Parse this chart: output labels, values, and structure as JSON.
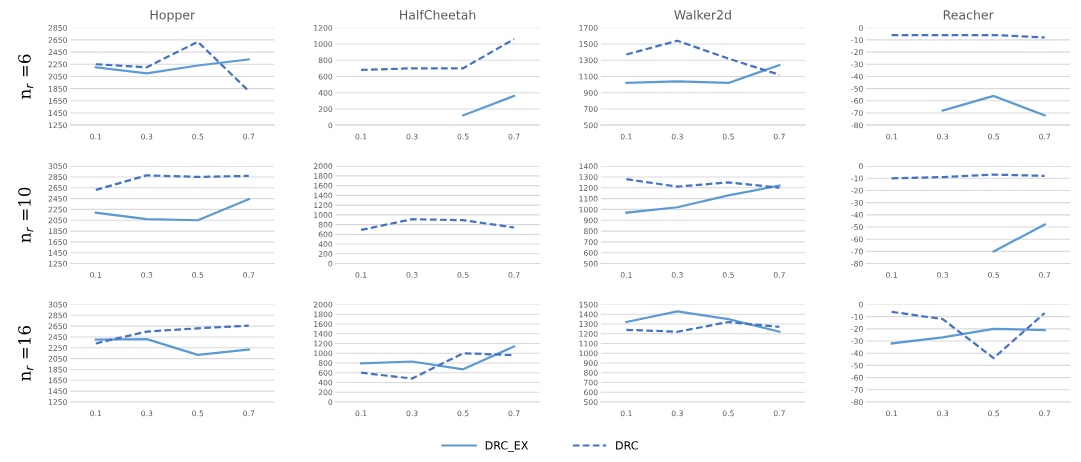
{
  "chart_data": [
    {
      "type": "line",
      "title": "Hopper",
      "ylabel": "n$_{r}$ =6",
      "categories": [
        "0.1",
        "0.3",
        "0.5",
        "0.7"
      ],
      "ylim": [
        1250,
        2850
      ],
      "yticks": [
        1250,
        1450,
        1650,
        1850,
        2050,
        2250,
        2450,
        2650,
        2850
      ],
      "grid": "y",
      "legend": "bottom",
      "series": [
        {
          "name": "DRC_EX",
          "color": "#5b9bd5",
          "line_style": "solid",
          "values": [
            2200,
            2100,
            2230,
            2330
          ]
        },
        {
          "name": "DRC",
          "color": "#4472c4",
          "line_style": "dashed",
          "values": [
            2250,
            2200,
            2620,
            1810
          ]
        }
      ]
    },
    {
      "type": "line",
      "title": "HalfCheetah",
      "categories": [
        "0.1",
        "0.3",
        "0.5",
        "0.7"
      ],
      "ylim": [
        0,
        1200
      ],
      "yticks": [
        0,
        200,
        400,
        600,
        800,
        1000,
        1200
      ],
      "grid": "y",
      "legend": false,
      "series": [
        {
          "name": "DRC_EX",
          "color": "#5b9bd5",
          "line_style": "solid",
          "values": [
            null,
            null,
            120,
            360
          ]
        },
        {
          "name": "DRC",
          "color": "#4472c4",
          "line_style": "dashed",
          "values": [
            680,
            700,
            700,
            1060
          ]
        }
      ]
    },
    {
      "type": "line",
      "title": "Walker2d",
      "categories": [
        "0.1",
        "0.3",
        "0.5",
        "0.7"
      ],
      "ylim": [
        500,
        1700
      ],
      "yticks": [
        500,
        700,
        900,
        1100,
        1300,
        1500,
        1700
      ],
      "grid": "y",
      "legend": false,
      "series": [
        {
          "name": "DRC_EX",
          "color": "#5b9bd5",
          "line_style": "solid",
          "values": [
            1020,
            1040,
            1020,
            1240
          ]
        },
        {
          "name": "DRC",
          "color": "#4472c4",
          "line_style": "dashed",
          "values": [
            1370,
            1540,
            1320,
            1120
          ]
        }
      ]
    },
    {
      "type": "line",
      "title": "Reacher",
      "categories": [
        "0.1",
        "0.3",
        "0.5",
        "0.7"
      ],
      "ylim": [
        -80,
        0
      ],
      "yticks": [
        -80,
        -70,
        -60,
        -50,
        -40,
        -30,
        -20,
        -10,
        0
      ],
      "grid": "y",
      "legend": false,
      "series": [
        {
          "name": "DRC_EX",
          "color": "#5b9bd5",
          "line_style": "solid",
          "values": [
            null,
            -68,
            -56,
            -72
          ]
        },
        {
          "name": "DRC",
          "color": "#4472c4",
          "line_style": "dashed",
          "values": [
            -6,
            -6,
            -6,
            -8
          ]
        }
      ]
    },
    {
      "type": "line",
      "ylabel": "n$_{r}$ =10",
      "categories": [
        "0.1",
        "0.3",
        "0.5",
        "0.7"
      ],
      "ylim": [
        1250,
        3050
      ],
      "yticks": [
        1250,
        1450,
        1650,
        1850,
        2050,
        2250,
        2450,
        2650,
        2850,
        3050
      ],
      "grid": "y",
      "legend": false,
      "series": [
        {
          "name": "DRC_EX",
          "color": "#5b9bd5",
          "line_style": "solid",
          "values": [
            2190,
            2070,
            2050,
            2440
          ]
        },
        {
          "name": "DRC",
          "color": "#4472c4",
          "line_style": "dashed",
          "values": [
            2610,
            2880,
            2850,
            2870
          ]
        }
      ]
    },
    {
      "type": "line",
      "categories": [
        "0.1",
        "0.3",
        "0.5",
        "0.7"
      ],
      "ylim": [
        0,
        2000
      ],
      "yticks": [
        0,
        200,
        400,
        600,
        800,
        1000,
        1200,
        1400,
        1600,
        1800,
        2000
      ],
      "grid": "y",
      "legend": false,
      "series": [
        {
          "name": "DRC",
          "color": "#4472c4",
          "line_style": "dashed",
          "values": [
            690,
            910,
            890,
            740
          ]
        }
      ]
    },
    {
      "type": "line",
      "categories": [
        "0.1",
        "0.3",
        "0.5",
        "0.7"
      ],
      "ylim": [
        500,
        1400
      ],
      "yticks": [
        500,
        600,
        700,
        800,
        900,
        1000,
        1100,
        1200,
        1300,
        1400
      ],
      "grid": "y",
      "legend": false,
      "series": [
        {
          "name": "DRC_EX",
          "color": "#5b9bd5",
          "line_style": "solid",
          "values": [
            970,
            1020,
            1130,
            1220
          ]
        },
        {
          "name": "DRC",
          "color": "#4472c4",
          "line_style": "dashed",
          "values": [
            1280,
            1210,
            1250,
            1200
          ]
        }
      ]
    },
    {
      "type": "line",
      "categories": [
        "0.1",
        "0.3",
        "0.5",
        "0.7"
      ],
      "ylim": [
        -80,
        0
      ],
      "yticks": [
        -80,
        -70,
        -60,
        -50,
        -40,
        -30,
        -20,
        -10,
        0
      ],
      "grid": "y",
      "legend": false,
      "series": [
        {
          "name": "DRC_EX",
          "color": "#5b9bd5",
          "line_style": "solid",
          "values": [
            null,
            null,
            -70,
            -48
          ]
        },
        {
          "name": "DRC",
          "color": "#4472c4",
          "line_style": "dashed",
          "values": [
            -10,
            -9,
            -7,
            -8
          ]
        }
      ]
    },
    {
      "type": "line",
      "ylabel": "n$_{r}$ =16",
      "categories": [
        "0.1",
        "0.3",
        "0.5",
        "0.7"
      ],
      "ylim": [
        1250,
        3050
      ],
      "yticks": [
        1250,
        1450,
        1650,
        1850,
        2050,
        2250,
        2450,
        2650,
        2850,
        3050
      ],
      "grid": "y",
      "legend": false,
      "series": [
        {
          "name": "DRC_EX",
          "color": "#5b9bd5",
          "line_style": "solid",
          "values": [
            2400,
            2410,
            2120,
            2220
          ]
        },
        {
          "name": "DRC",
          "color": "#4472c4",
          "line_style": "dashed",
          "values": [
            2330,
            2550,
            2610,
            2660
          ]
        }
      ]
    },
    {
      "type": "line",
      "categories": [
        "0.1",
        "0.3",
        "0.5",
        "0.7"
      ],
      "ylim": [
        0,
        2000
      ],
      "yticks": [
        0,
        200,
        400,
        600,
        800,
        1000,
        1200,
        1400,
        1600,
        1800,
        2000
      ],
      "grid": "y",
      "legend": false,
      "series": [
        {
          "name": "DRC_EX",
          "color": "#5b9bd5",
          "line_style": "solid",
          "values": [
            790,
            830,
            670,
            1140
          ]
        },
        {
          "name": "DRC",
          "color": "#4472c4",
          "line_style": "dashed",
          "values": [
            600,
            480,
            1000,
            960
          ]
        }
      ]
    },
    {
      "type": "line",
      "categories": [
        "0.1",
        "0.3",
        "0.5",
        "0.7"
      ],
      "ylim": [
        500,
        1500
      ],
      "yticks": [
        500,
        600,
        700,
        800,
        900,
        1000,
        1100,
        1200,
        1300,
        1400,
        1500
      ],
      "grid": "y",
      "legend": "bottom",
      "series": [
        {
          "name": "DRC_EX",
          "color": "#5b9bd5",
          "line_style": "solid",
          "values": [
            1320,
            1430,
            1350,
            1220
          ]
        },
        {
          "name": "DRC",
          "color": "#4472c4",
          "line_style": "dashed",
          "values": [
            1240,
            1220,
            1320,
            1270
          ]
        }
      ]
    },
    {
      "type": "line",
      "categories": [
        "0.1",
        "0.3",
        "0.5",
        "0.7"
      ],
      "ylim": [
        -80,
        0
      ],
      "yticks": [
        -80,
        -70,
        -60,
        -50,
        -40,
        -30,
        -20,
        -10,
        0
      ],
      "grid": "y",
      "legend": false,
      "series": [
        {
          "name": "DRC_EX",
          "color": "#5b9bd5",
          "line_style": "solid",
          "values": [
            -32,
            -27,
            -20,
            -21
          ]
        },
        {
          "name": "DRC",
          "color": "#4472c4",
          "line_style": "dashed",
          "values": [
            -6,
            -12,
            -44,
            -7
          ]
        }
      ]
    }
  ]
}
